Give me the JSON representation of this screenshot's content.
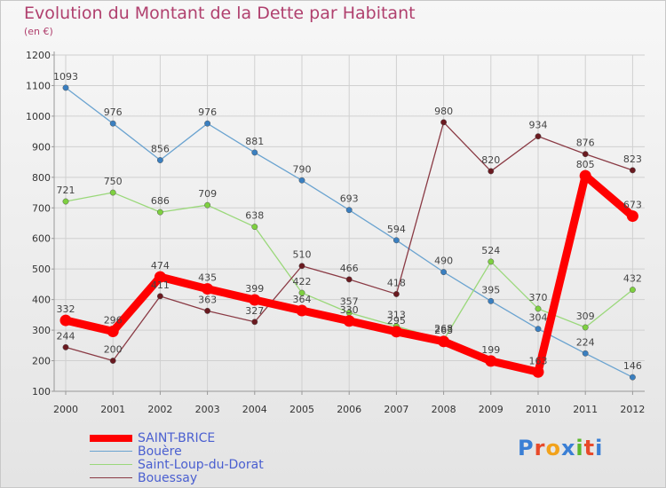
{
  "title": "Evolution du Montant de la Dette par Habitant",
  "unit": "(en €)",
  "logo": {
    "text": "Proxiti",
    "colors": [
      "#3a7fd5",
      "#e84a2a",
      "#f2a21b",
      "#3a7fd5",
      "#5cb82e",
      "#e84a2a",
      "#3a7fd5"
    ]
  },
  "chart_data": {
    "type": "line",
    "x": [
      "2000",
      "2001",
      "2002",
      "2003",
      "2004",
      "2005",
      "2006",
      "2007",
      "2008",
      "2009",
      "2010",
      "2011",
      "2012"
    ],
    "ylim": [
      100,
      1200
    ],
    "yticks": [
      "100",
      "200",
      "300",
      "400",
      "500",
      "600",
      "700",
      "800",
      "900",
      "1000",
      "1100",
      "1200"
    ],
    "grid": true,
    "legend": "bottom-left",
    "series": [
      {
        "name": "Bouère",
        "color": "#6aa3d0",
        "marker": "#3a7fc0",
        "values": [
          1093,
          976,
          856,
          976,
          881,
          790,
          693,
          594,
          490,
          395,
          304,
          224,
          146
        ]
      },
      {
        "name": "Saint-Loup-du-Dorat",
        "color": "#9ad87a",
        "marker": "#7ed040",
        "values": [
          721,
          750,
          686,
          709,
          638,
          422,
          357,
          313,
          268,
          524,
          370,
          309,
          432
        ]
      },
      {
        "name": "Bouessay",
        "color": "#8a3a44",
        "marker": "#6a1a20",
        "values": [
          244,
          200,
          411,
          363,
          327,
          510,
          466,
          418,
          980,
          820,
          934,
          876,
          823
        ]
      },
      {
        "name": "SAINT-BRICE",
        "color": "#ff0000",
        "marker": "#ff0000",
        "values": [
          332,
          296,
          474,
          435,
          399,
          364,
          330,
          295,
          263,
          199,
          163,
          805,
          673
        ]
      }
    ]
  }
}
